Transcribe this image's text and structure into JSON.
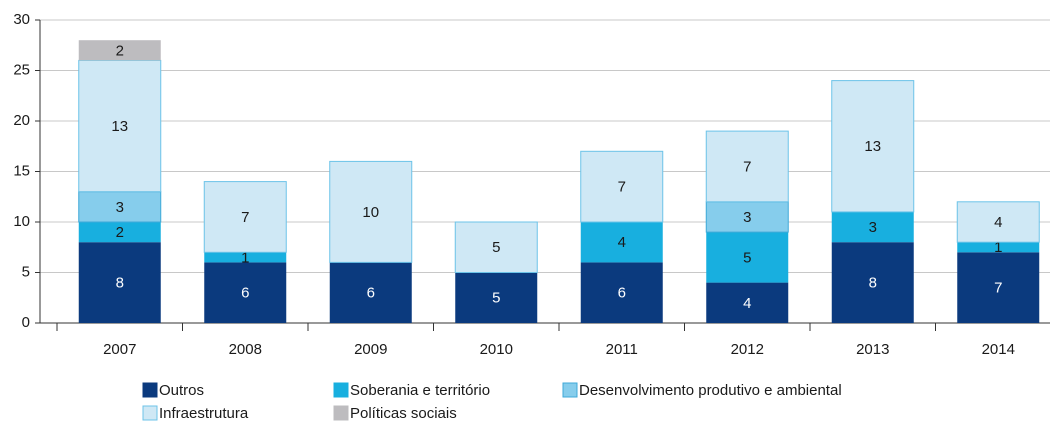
{
  "chart_data": {
    "type": "stacked_bar",
    "categories": [
      "2007",
      "2008",
      "2009",
      "2010",
      "2011",
      "2012",
      "2013",
      "2014"
    ],
    "series": [
      {
        "name": "Outros",
        "color": "#0b3a7e",
        "values": [
          8,
          6,
          6,
          5,
          6,
          4,
          8,
          7
        ]
      },
      {
        "name": "Soberania e território",
        "color": "#18afdf",
        "values": [
          2,
          1,
          null,
          null,
          4,
          5,
          3,
          1
        ]
      },
      {
        "name": "Desenvolvimento produtivo e ambiental",
        "color": "#86cdec",
        "values": [
          3,
          null,
          null,
          null,
          null,
          3,
          null,
          null
        ]
      },
      {
        "name": "Infraestrutura",
        "color": "#cfe8f5",
        "values": [
          13,
          7,
          10,
          5,
          7,
          7,
          13,
          4
        ]
      },
      {
        "name": "Políticas sociais",
        "color": "#bdbcbf",
        "values": [
          2,
          null,
          null,
          null,
          null,
          null,
          null,
          null
        ]
      }
    ],
    "ylim": [
      0,
      30
    ],
    "yticks": [
      0,
      5,
      10,
      15,
      20,
      25,
      30
    ],
    "grid": true
  }
}
